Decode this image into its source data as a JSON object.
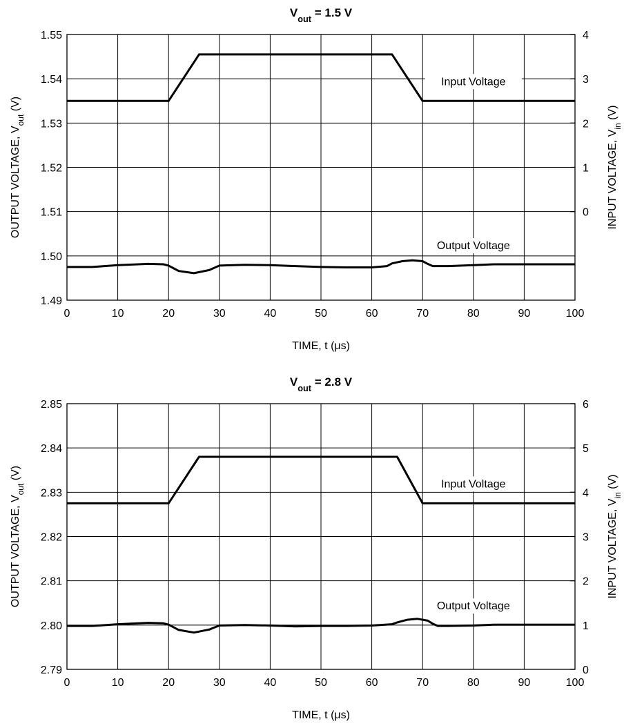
{
  "chart_data": [
    {
      "type": "line",
      "title": {
        "main": "V",
        "sub": "out",
        "rest": " = 1.5 V"
      },
      "xlabel": "TIME, t (μs)",
      "ylabel_left": {
        "main": "OUTPUT VOLTAGE, V",
        "sub": "out",
        "rest": " (V)"
      },
      "ylabel_right": {
        "main": "INPUT VOLTAGE, V",
        "sub": "in",
        "rest": " (V)"
      },
      "xlim": [
        0,
        100
      ],
      "ylim_left": [
        1.49,
        1.55
      ],
      "ylim_right": [
        -2,
        4
      ],
      "x_ticks": [
        "0",
        "10",
        "20",
        "30",
        "40",
        "50",
        "60",
        "70",
        "80",
        "90",
        "100"
      ],
      "y_left_ticks": [
        "1.49",
        "1.50",
        "1.51",
        "1.52",
        "1.53",
        "1.54",
        "1.55"
      ],
      "y_right_ticks": [
        "0",
        "1",
        "2",
        "3",
        "4"
      ],
      "grid": true,
      "series": [
        {
          "name": "Input Voltage",
          "axis": "right",
          "x": [
            0,
            20,
            26,
            64,
            70,
            100
          ],
          "y": [
            2.5,
            2.5,
            3.55,
            3.55,
            2.5,
            2.5
          ]
        },
        {
          "name": "Output Voltage",
          "axis": "left",
          "x": [
            0,
            5,
            10,
            16,
            19,
            20,
            22,
            25,
            28,
            30,
            35,
            40,
            45,
            50,
            55,
            60,
            63,
            64,
            66,
            68,
            70,
            71,
            72,
            75,
            80,
            84,
            90,
            100
          ],
          "y": [
            1.4975,
            1.4975,
            1.4979,
            1.4982,
            1.4981,
            1.4978,
            1.4966,
            1.4961,
            1.4968,
            1.4978,
            1.498,
            1.4979,
            1.4977,
            1.4975,
            1.4974,
            1.4974,
            1.4977,
            1.4983,
            1.4988,
            1.499,
            1.4988,
            1.4982,
            1.4977,
            1.4977,
            1.4979,
            1.4981,
            1.4981,
            1.4981
          ]
        }
      ]
    },
    {
      "type": "line",
      "title": {
        "main": "V",
        "sub": "out",
        "rest": " = 2.8 V"
      },
      "xlabel": "TIME, t (μs)",
      "ylabel_left": {
        "main": "OUTPUT VOLTAGE, V",
        "sub": "out",
        "rest": " (V)"
      },
      "ylabel_right": {
        "main": "INPUT VOLTAGE, V",
        "sub": "in",
        "rest": " (V)"
      },
      "xlim": [
        0,
        100
      ],
      "ylim_left": [
        2.79,
        2.85
      ],
      "ylim_right": [
        0,
        6
      ],
      "x_ticks": [
        "0",
        "10",
        "20",
        "30",
        "40",
        "50",
        "60",
        "70",
        "80",
        "90",
        "100"
      ],
      "y_left_ticks": [
        "2.79",
        "2.80",
        "2.81",
        "2.82",
        "2.83",
        "2.84",
        "2.85"
      ],
      "y_right_ticks": [
        "0",
        "1",
        "2",
        "3",
        "4",
        "5",
        "6"
      ],
      "grid": true,
      "series": [
        {
          "name": "Input Voltage",
          "axis": "right",
          "x": [
            0,
            20,
            26,
            65,
            70,
            100
          ],
          "y": [
            3.75,
            3.75,
            4.8,
            4.8,
            3.75,
            3.75
          ]
        },
        {
          "name": "Output Voltage",
          "axis": "left",
          "x": [
            0,
            5,
            10,
            16,
            19,
            20,
            22,
            25,
            28,
            30,
            35,
            40,
            45,
            50,
            55,
            60,
            64,
            65,
            67,
            69,
            71,
            72,
            73,
            75,
            80,
            84,
            90,
            100
          ],
          "y": [
            2.7998,
            2.7998,
            2.8002,
            2.8005,
            2.8004,
            2.8001,
            2.7989,
            2.7983,
            2.799,
            2.7999,
            2.8,
            2.7999,
            2.7997,
            2.7998,
            2.7998,
            2.7999,
            2.8002,
            2.8006,
            2.8012,
            2.8014,
            2.801,
            2.8003,
            2.7998,
            2.7998,
            2.7999,
            2.8001,
            2.8001,
            2.8001
          ]
        }
      ]
    }
  ]
}
